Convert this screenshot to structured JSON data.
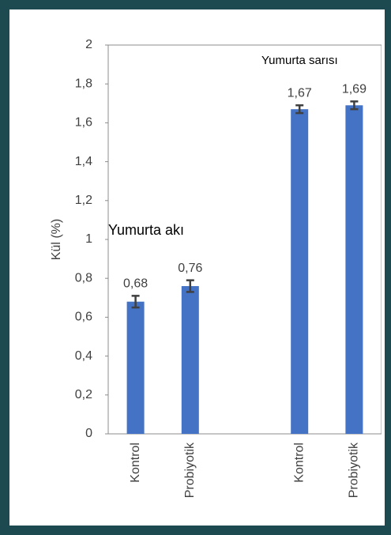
{
  "chart_data": {
    "type": "bar",
    "y_label": "Kül (%)",
    "categories": [
      "Kontrol",
      "Probiyotik",
      null,
      "Kontrol",
      "Probiyotik"
    ],
    "values": [
      0.68,
      0.76,
      null,
      1.67,
      1.69
    ],
    "value_labels": [
      "0,68",
      "0,76",
      null,
      "1,67",
      "1,69"
    ],
    "errors": [
      0.03,
      0.03,
      null,
      0.02,
      0.02
    ],
    "color": "#4472c4",
    "error_color": "#404040",
    "annotations": [
      "Yumurta akı",
      "Yumurta sarısı"
    ],
    "ylim": [
      0,
      2
    ],
    "yticks": [
      0,
      {
        "value": 0.2,
        "label": "0,2"
      },
      {
        "value": 0.4,
        "label": "0,4"
      },
      {
        "value": 0.6,
        "label": "0,6"
      },
      {
        "value": 0.8,
        "label": "0,8"
      },
      1,
      {
        "value": 1.2,
        "label": "1,2"
      },
      {
        "value": 1.4,
        "label": "1,4"
      },
      {
        "value": 1.6,
        "label": "1,6"
      },
      {
        "value": 1.8,
        "label": "1,8"
      },
      2
    ],
    "grid": false
  }
}
